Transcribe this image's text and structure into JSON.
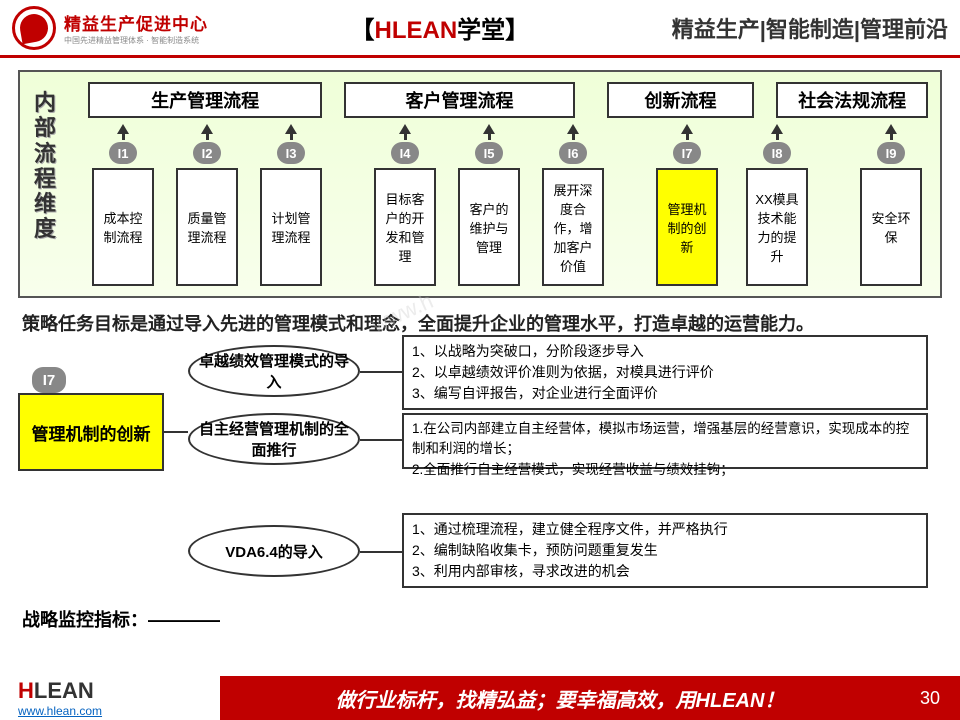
{
  "header": {
    "logo_title": "精益生产促进中心",
    "logo_sub": "中国先进精益管理体系 · 智能制造系统",
    "center_prefix": "【",
    "center_red": "HLEAN",
    "center_black": "学堂",
    "center_suffix": "】",
    "right": "精益生产|智能制造|管理前沿"
  },
  "diagram": {
    "vert_label": "内部流程维度",
    "headers": [
      "生产管理流程",
      "客户管理流程",
      "创新流程",
      "社会法规流程"
    ],
    "items": [
      {
        "id": "I1",
        "label": "成本控制流程",
        "hl": false
      },
      {
        "id": "I2",
        "label": "质量管理流程",
        "hl": false
      },
      {
        "id": "I3",
        "label": "计划管理流程",
        "hl": false
      },
      {
        "id": "I4",
        "label": "目标客户的开发和管理",
        "hl": false
      },
      {
        "id": "I5",
        "label": "客户的维护与管理",
        "hl": false
      },
      {
        "id": "I6",
        "label": "展开深度合作，增加客户价值",
        "hl": false
      },
      {
        "id": "I7",
        "label": "管理机制的创新",
        "hl": true
      },
      {
        "id": "I8",
        "label": "XX模具技术能力的提升",
        "hl": false
      },
      {
        "id": "I9",
        "label": "安全环保",
        "hl": false
      }
    ]
  },
  "strategy": "策略任务目标是通过导入先进的管理模式和理念，全面提升企业的管理水平，打造卓越的运营能力。",
  "lower": {
    "badge": "I7",
    "left_box": "管理机制的创新",
    "ovals": [
      "卓越绩效管理模式的导入",
      "自主经营管理机制的全面推行",
      "VDA6.4的导入"
    ],
    "boxes": [
      "1、以战略为突破口，分阶段逐步导入\n2、以卓越绩效评价准则为依据，对模具进行评价\n3、编写自评报告，对企业进行全面评价",
      "1.在公司内部建立自主经营体，模拟市场运营，增强基层的经营意识，实现成本的控制和利润的增长；\n2.全面推行自主经营模式，实现经营收益与绩效挂钩；",
      "1、通过梳理流程，建立健全程序文件，并严格执行\n2、编制缺陷收集卡，预防问题重复发生\n3、利用内部审核，寻求改进的机会"
    ]
  },
  "monitor": "战略监控指标：————",
  "footer": {
    "logo1": "H",
    "logo2": "LEAN",
    "url": "www.hlean.com",
    "bar": "做行业标杆，找精弘益；要幸福高效，用HLEAN！",
    "page": "30"
  },
  "colors": {
    "brand": "#c00000",
    "highlight": "#ffff00",
    "border": "#333"
  }
}
